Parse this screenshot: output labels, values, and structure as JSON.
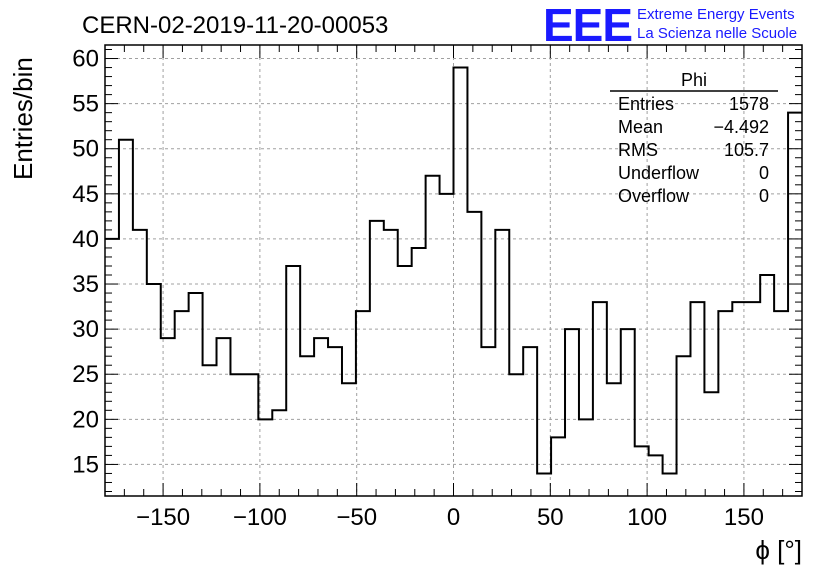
{
  "run_title": "CERN-02-2019-11-20-00053",
  "logo": {
    "letters": "EEE",
    "line1": "Extreme Energy Events",
    "line2": "La Scienza nelle Scuole",
    "color": "#1a1aff"
  },
  "stats": {
    "name": "Phi",
    "rows": [
      {
        "label": "Entries",
        "value": "1578"
      },
      {
        "label": "Mean",
        "value": "−4.492"
      },
      {
        "label": "RMS",
        "value": "105.7"
      },
      {
        "label": "Underflow",
        "value": "0"
      },
      {
        "label": "Overflow",
        "value": "0"
      }
    ]
  },
  "chart_data": {
    "type": "bar",
    "subtype": "step-histogram",
    "title": "CERN-02-2019-11-20-00053",
    "xlabel": "ϕ [°]",
    "ylabel": "Entries/bin",
    "xlim": [
      -180,
      180
    ],
    "ylim": [
      11.5,
      61.5
    ],
    "grid": true,
    "bin_width": 7.2,
    "x_ticks": [
      -150,
      -100,
      -50,
      0,
      50,
      100,
      150
    ],
    "x_tick_labels": [
      "−150",
      "−100",
      "−50",
      "0",
      "50",
      "100",
      "150"
    ],
    "y_ticks": [
      15,
      20,
      25,
      30,
      35,
      40,
      45,
      50,
      55,
      60
    ],
    "y_tick_labels": [
      "15",
      "20",
      "25",
      "30",
      "35",
      "40",
      "45",
      "50",
      "55",
      "60"
    ],
    "values": [
      40,
      51,
      41,
      35,
      29,
      32,
      34,
      26,
      29,
      25,
      25,
      20,
      21,
      37,
      27,
      29,
      28,
      24,
      32,
      42,
      41,
      37,
      39,
      47,
      45,
      59,
      43,
      28,
      41,
      25,
      28,
      14,
      18,
      30,
      20,
      33,
      24,
      30,
      17,
      16,
      14,
      27,
      33,
      23,
      32,
      33,
      33,
      36,
      32,
      54
    ]
  }
}
